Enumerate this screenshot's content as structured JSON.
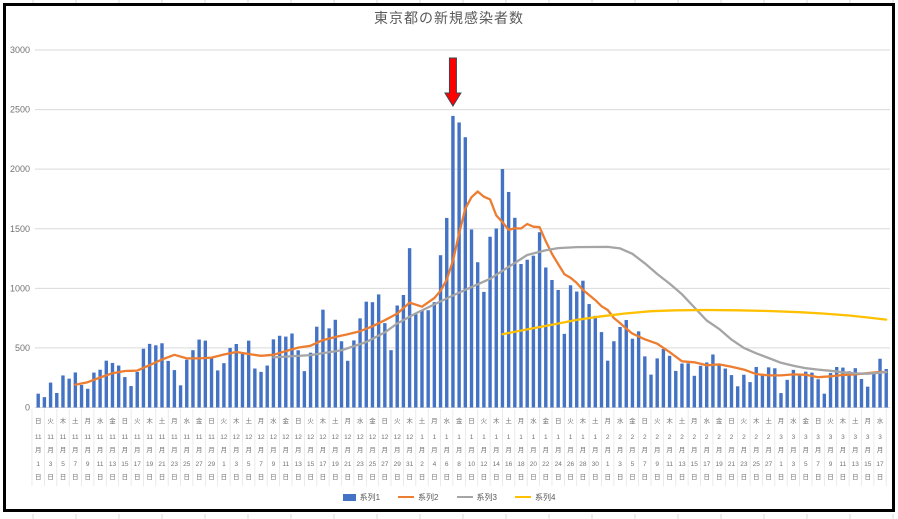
{
  "title": "東京都の新規感染者数",
  "legend": [
    {
      "name": "系列1",
      "marker": "bar",
      "color": "#4472C4"
    },
    {
      "name": "系列2",
      "marker": "line",
      "color": "#ED7D31"
    },
    {
      "name": "系列3",
      "marker": "line",
      "color": "#A5A5A5"
    },
    {
      "name": "系列4",
      "marker": "line",
      "color": "#FFC000"
    }
  ],
  "colors": {
    "bar": "#4472C4",
    "line2": "#ED7D31",
    "line3": "#A5A5A5",
    "line4": "#FFC000",
    "gridline": "#D9D9D9",
    "axis_text": "#737373",
    "title_text": "#595959",
    "frame": "#000000",
    "arrow_fill": "#FF0000",
    "arrow_stroke": "#3D4556"
  },
  "chart_data": {
    "type": "combo",
    "title": "東京都の新規感染者数",
    "x": {
      "unit": "day",
      "start_label": "日 11月1日",
      "end_label": "水 3月17日",
      "label_interval_days": 2,
      "labels": [
        [
          "日",
          11,
          1
        ],
        [
          "火",
          11,
          3
        ],
        [
          "木",
          11,
          5
        ],
        [
          "土",
          11,
          7
        ],
        [
          "月",
          11,
          9
        ],
        [
          "水",
          11,
          11
        ],
        [
          "金",
          11,
          13
        ],
        [
          "日",
          11,
          15
        ],
        [
          "火",
          11,
          17
        ],
        [
          "木",
          11,
          19
        ],
        [
          "土",
          11,
          21
        ],
        [
          "月",
          11,
          23
        ],
        [
          "水",
          11,
          25
        ],
        [
          "金",
          11,
          27
        ],
        [
          "日",
          11,
          29
        ],
        [
          "火",
          12,
          1
        ],
        [
          "木",
          12,
          3
        ],
        [
          "土",
          12,
          5
        ],
        [
          "月",
          12,
          7
        ],
        [
          "水",
          12,
          9
        ],
        [
          "金",
          12,
          11
        ],
        [
          "日",
          12,
          13
        ],
        [
          "火",
          12,
          15
        ],
        [
          "木",
          12,
          17
        ],
        [
          "土",
          12,
          19
        ],
        [
          "月",
          12,
          21
        ],
        [
          "水",
          12,
          23
        ],
        [
          "金",
          12,
          25
        ],
        [
          "日",
          12,
          27
        ],
        [
          "火",
          12,
          29
        ],
        [
          "木",
          12,
          31
        ],
        [
          "土",
          1,
          2
        ],
        [
          "月",
          1,
          4
        ],
        [
          "水",
          1,
          6
        ],
        [
          "金",
          1,
          8
        ],
        [
          "日",
          1,
          10
        ],
        [
          "火",
          1,
          12
        ],
        [
          "木",
          1,
          14
        ],
        [
          "土",
          1,
          16
        ],
        [
          "月",
          1,
          18
        ],
        [
          "水",
          1,
          20
        ],
        [
          "金",
          1,
          22
        ],
        [
          "日",
          1,
          24
        ],
        [
          "火",
          1,
          26
        ],
        [
          "木",
          1,
          28
        ],
        [
          "土",
          1,
          30
        ],
        [
          "月",
          2,
          1
        ],
        [
          "水",
          2,
          3
        ],
        [
          "金",
          2,
          5
        ],
        [
          "日",
          2,
          7
        ],
        [
          "火",
          2,
          9
        ],
        [
          "木",
          2,
          11
        ],
        [
          "土",
          2,
          13
        ],
        [
          "月",
          2,
          15
        ],
        [
          "水",
          2,
          17
        ],
        [
          "金",
          2,
          19
        ],
        [
          "日",
          2,
          21
        ],
        [
          "火",
          2,
          23
        ],
        [
          "木",
          2,
          25
        ],
        [
          "土",
          2,
          27
        ],
        [
          "月",
          3,
          1
        ],
        [
          "水",
          3,
          3
        ],
        [
          "金",
          3,
          5
        ],
        [
          "日",
          3,
          7
        ],
        [
          "火",
          3,
          9
        ],
        [
          "木",
          3,
          11
        ],
        [
          "土",
          3,
          13
        ],
        [
          "月",
          3,
          15
        ],
        [
          "水",
          3,
          17
        ]
      ]
    },
    "y": {
      "min": 0,
      "max": 3000,
      "tick_step": 500,
      "ticks": [
        "0",
        "500",
        "1000",
        "1500",
        "2000",
        "2500",
        "3000"
      ],
      "grid": true
    },
    "series": [
      {
        "name": "系列1",
        "type": "bar",
        "color": "#4472C4",
        "values": [
          116,
          87,
          209,
          122,
          269,
          242,
          294,
          189,
          157,
          293,
          317,
          393,
          374,
          352,
          255,
          180,
          298,
          493,
          534,
          522,
          539,
          391,
          314,
          186,
          401,
          481,
          570,
          561,
          418,
          311,
          372,
          500,
          533,
          449,
          561,
          327,
          299,
          352,
          572,
          602,
          595,
          621,
          480,
          305,
          460,
          678,
          821,
          664,
          736,
          556,
          392,
          563,
          748,
          888,
          884,
          949,
          708,
          481,
          856,
          944,
          1337,
          783,
          814,
          816,
          884,
          1278,
          1591,
          2447,
          2392,
          2268,
          1494,
          1219,
          970,
          1433,
          1502,
          2001,
          1809,
          1592,
          1204,
          1240,
          1274,
          1471,
          1175,
          1070,
          986,
          618,
          1026,
          973,
          1064,
          868,
          769,
          633,
          393,
          556,
          676,
          734,
          577,
          639,
          429,
          276,
          412,
          491,
          434,
          307,
          369,
          371,
          266,
          350,
          378,
          445,
          353,
          327,
          272,
          178,
          275,
          213,
          340,
          270,
          337,
          329,
          121,
          232,
          316,
          279,
          301,
          293,
          237,
          116,
          290,
          340,
          335,
          304,
          330,
          239,
          175,
          300,
          409,
          323
        ]
      },
      {
        "name": "系列2",
        "type": "line",
        "color": "#ED7D31",
        "anchors": [
          [
            6,
            191
          ],
          [
            8,
            212
          ],
          [
            10,
            252
          ],
          [
            12,
            288
          ],
          [
            14,
            306
          ],
          [
            16,
            310
          ],
          [
            18,
            355
          ],
          [
            20,
            403
          ],
          [
            22,
            442
          ],
          [
            24,
            412
          ],
          [
            26,
            412
          ],
          [
            28,
            419
          ],
          [
            30,
            445
          ],
          [
            32,
            466
          ],
          [
            34,
            449
          ],
          [
            36,
            434
          ],
          [
            38,
            442
          ],
          [
            40,
            473
          ],
          [
            42,
            503
          ],
          [
            44,
            519
          ],
          [
            46,
            566
          ],
          [
            48,
            592
          ],
          [
            50,
            615
          ],
          [
            52,
            640
          ],
          [
            54,
            681
          ],
          [
            56,
            733
          ],
          [
            58,
            788
          ],
          [
            60,
            880
          ],
          [
            62,
            846
          ],
          [
            64,
            919
          ],
          [
            65,
            979
          ],
          [
            66,
            1072
          ],
          [
            67,
            1230
          ],
          [
            68,
            1460
          ],
          [
            69,
            1668
          ],
          [
            70,
            1765
          ],
          [
            71,
            1813
          ],
          [
            72,
            1769
          ],
          [
            73,
            1746
          ],
          [
            74,
            1611
          ],
          [
            75,
            1555
          ],
          [
            76,
            1490
          ],
          [
            77,
            1504
          ],
          [
            78,
            1502
          ],
          [
            79,
            1540
          ],
          [
            80,
            1517
          ],
          [
            81,
            1513
          ],
          [
            82,
            1395
          ],
          [
            83,
            1289
          ],
          [
            84,
            1203
          ],
          [
            85,
            1119
          ],
          [
            86,
            1089
          ],
          [
            87,
            1046
          ],
          [
            88,
            987
          ],
          [
            89,
            944
          ],
          [
            90,
            901
          ],
          [
            91,
            850
          ],
          [
            92,
            818
          ],
          [
            93,
            751
          ],
          [
            94,
            708
          ],
          [
            95,
            661
          ],
          [
            96,
            620
          ],
          [
            98,
            572
          ],
          [
            100,
            535
          ],
          [
            102,
            465
          ],
          [
            104,
            388
          ],
          [
            106,
            379
          ],
          [
            108,
            354
          ],
          [
            110,
            362
          ],
          [
            112,
            342
          ],
          [
            114,
            318
          ],
          [
            116,
            280
          ],
          [
            118,
            269
          ],
          [
            120,
            269
          ],
          [
            122,
            278
          ],
          [
            124,
            274
          ],
          [
            126,
            254
          ],
          [
            128,
            262
          ],
          [
            130,
            273
          ],
          [
            132,
            279
          ],
          [
            134,
            288
          ],
          [
            136,
            299
          ],
          [
            137,
            297
          ]
        ]
      },
      {
        "name": "系列3",
        "type": "line",
        "color": "#A5A5A5",
        "anchors": [
          [
            38,
            420
          ],
          [
            44,
            440
          ],
          [
            49,
            480
          ],
          [
            53,
            550
          ],
          [
            56,
            630
          ],
          [
            58,
            705
          ],
          [
            61,
            790
          ],
          [
            64,
            865
          ],
          [
            67,
            940
          ],
          [
            70,
            1010
          ],
          [
            73,
            1080
          ],
          [
            76,
            1180
          ],
          [
            79,
            1280
          ],
          [
            82,
            1320
          ],
          [
            84,
            1338
          ],
          [
            87,
            1346
          ],
          [
            92,
            1348
          ],
          [
            94,
            1335
          ],
          [
            96,
            1290
          ],
          [
            98,
            1210
          ],
          [
            100,
            1120
          ],
          [
            102,
            1040
          ],
          [
            104,
            950
          ],
          [
            106,
            840
          ],
          [
            108,
            730
          ],
          [
            110,
            660
          ],
          [
            112,
            570
          ],
          [
            114,
            500
          ],
          [
            116,
            455
          ],
          [
            118,
            415
          ],
          [
            120,
            375
          ],
          [
            122,
            350
          ],
          [
            124,
            330
          ],
          [
            126,
            318
          ],
          [
            128,
            308
          ],
          [
            130,
            295
          ],
          [
            132,
            286
          ],
          [
            134,
            284
          ],
          [
            136,
            292
          ],
          [
            137,
            298
          ]
        ]
      },
      {
        "name": "系列4",
        "type": "line",
        "color": "#FFC000",
        "anchors": [
          [
            75,
            615
          ],
          [
            79,
            655
          ],
          [
            83,
            695
          ],
          [
            87,
            735
          ],
          [
            91,
            765
          ],
          [
            95,
            790
          ],
          [
            99,
            808
          ],
          [
            103,
            816
          ],
          [
            108,
            818
          ],
          [
            113,
            816
          ],
          [
            118,
            810
          ],
          [
            123,
            800
          ],
          [
            127,
            788
          ],
          [
            131,
            772
          ],
          [
            134,
            755
          ],
          [
            137,
            738
          ]
        ]
      }
    ],
    "annotation": {
      "type": "down-arrow",
      "day_index": 67,
      "points_to_value": 2447,
      "fill": "#FF0000",
      "stroke": "#3D4556"
    }
  }
}
